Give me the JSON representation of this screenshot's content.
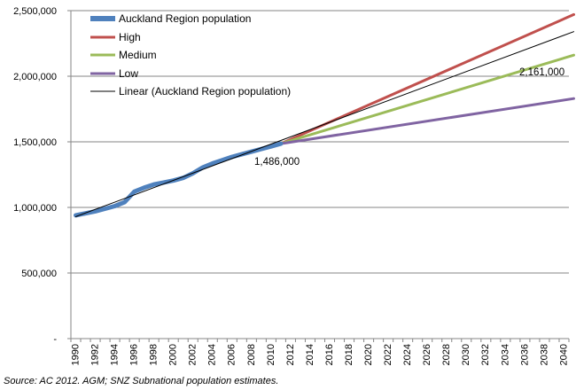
{
  "chart_data": {
    "type": "line",
    "title": "",
    "xlabel": "",
    "ylabel": "",
    "x_range": [
      1990,
      2041
    ],
    "ylim": [
      0,
      2500000
    ],
    "y_ticks": [
      0,
      500000,
      1000000,
      1500000,
      2000000,
      2500000
    ],
    "y_tick_labels": [
      "-",
      "500,000",
      "1,000,000",
      "1,500,000",
      "2,000,000",
      "2,500,000"
    ],
    "x_tick_labels": [
      "1990",
      "1992",
      "1994",
      "1996",
      "1998",
      "2000",
      "2002",
      "2004",
      "2006",
      "2008",
      "2010",
      "2012",
      "2014",
      "2016",
      "2018",
      "2020",
      "2022",
      "2024",
      "2026",
      "2028",
      "2030",
      "2032",
      "2034",
      "2036",
      "2038",
      "2040"
    ],
    "grid": "horizontal",
    "legend_position": "top-left",
    "series": [
      {
        "name": "Auckland Region population",
        "color": "#4f81bd",
        "width": 5,
        "x": [
          1990,
          1991,
          1992,
          1993,
          1994,
          1995,
          1996,
          1997,
          1998,
          1999,
          2000,
          2001,
          2002,
          2003,
          2004,
          2005,
          2006,
          2007,
          2008,
          2009,
          2010,
          2011
        ],
        "values": [
          940000,
          955000,
          970000,
          990000,
          1010000,
          1040000,
          1120000,
          1150000,
          1175000,
          1190000,
          1205000,
          1225000,
          1260000,
          1305000,
          1335000,
          1360000,
          1385000,
          1405000,
          1425000,
          1445000,
          1465000,
          1486000
        ]
      },
      {
        "name": "High",
        "color": "#c0504d",
        "width": 3,
        "x": [
          2011,
          2041
        ],
        "values": [
          1486000,
          2470000
        ]
      },
      {
        "name": "Medium",
        "color": "#9bbb59",
        "width": 3,
        "x": [
          2011,
          2041
        ],
        "values": [
          1486000,
          2161000
        ]
      },
      {
        "name": "Low",
        "color": "#8064a2",
        "width": 3,
        "x": [
          2011,
          2041
        ],
        "values": [
          1486000,
          1830000
        ]
      },
      {
        "name": "Linear (Auckland Region population)",
        "color": "#000000",
        "width": 1,
        "x": [
          1990,
          2041
        ],
        "values": [
          930000,
          2340000
        ]
      }
    ],
    "annotations": [
      "1,486,000",
      "2,161,000"
    ]
  },
  "source": "Source: AC 2012. AGM; SNZ Subnational population estimates."
}
